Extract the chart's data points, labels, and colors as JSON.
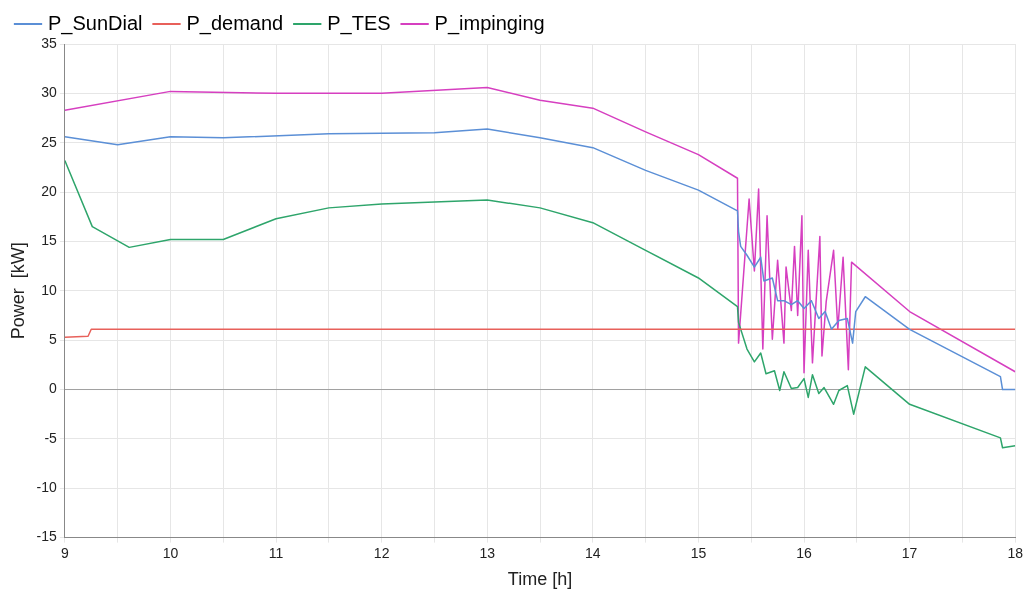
{
  "chart_data": {
    "type": "line",
    "xlabel": "Time [h]",
    "ylabel": "Power  [kW]",
    "xlim": [
      9,
      18
    ],
    "xticks": [
      9,
      {
        "value": 9.5,
        "label": null
      },
      10,
      {
        "value": 10.5,
        "label": null
      },
      11,
      {
        "value": 11.5,
        "label": null
      },
      12,
      {
        "value": 12.5,
        "label": null
      },
      13,
      {
        "value": 13.5,
        "label": null
      },
      14,
      {
        "value": 14.5,
        "label": null
      },
      15,
      {
        "value": 15.5,
        "label": null
      },
      16,
      {
        "value": 16.5,
        "label": null
      },
      17,
      {
        "value": 17.5,
        "label": null
      },
      18
    ],
    "ylim": [
      -15,
      35
    ],
    "yticks": [
      -15,
      -10,
      -5,
      0,
      5,
      10,
      15,
      20,
      25,
      30,
      35
    ],
    "grid": true,
    "legend": "top left",
    "marker": "none",
    "line_style": "solid",
    "ref_lines": [
      {
        "axis": "y",
        "value": 0,
        "color": "#a0a0a0"
      }
    ],
    "series": [
      {
        "name": "P_SunDial",
        "color": "#5b8fd6",
        "x": [
          9,
          9.5,
          10,
          10.5,
          11.5,
          12.5,
          13,
          13.5,
          14,
          14.5,
          15,
          15.37,
          15.38,
          15.4,
          15.46,
          15.53,
          15.59,
          15.62,
          15.7,
          15.75,
          15.81,
          15.88,
          15.94,
          16.0,
          16.07,
          16.14,
          16.2,
          16.26,
          16.33,
          16.41,
          16.46,
          16.49,
          16.58,
          17.0,
          17.86,
          17.88,
          18
        ],
        "values": [
          25.6,
          24.8,
          25.6,
          25.5,
          25.9,
          26.0,
          26.4,
          25.5,
          24.5,
          22.2,
          20.2,
          18.1,
          16.0,
          14.5,
          13.6,
          12.4,
          13.4,
          11.0,
          11.3,
          9.0,
          9.0,
          8.6,
          9.0,
          8.2,
          9.0,
          7.2,
          7.9,
          6.1,
          7.0,
          7.2,
          4.7,
          7.9,
          9.4,
          6.1,
          1.3,
          0,
          0
        ]
      },
      {
        "name": "P_demand",
        "color": "#e8605a",
        "x": [
          9,
          9.22,
          9.25,
          18
        ],
        "values": [
          5.3,
          5.4,
          6.1,
          6.1
        ]
      },
      {
        "name": "P_TES",
        "color": "#2ea56b",
        "x": [
          9,
          9.26,
          9.61,
          10,
          10.5,
          11,
          11.5,
          12,
          13,
          13.5,
          14,
          14.5,
          15,
          15.37,
          15.38,
          15.46,
          15.53,
          15.59,
          15.64,
          15.72,
          15.77,
          15.81,
          15.88,
          15.94,
          16.0,
          16.04,
          16.08,
          16.14,
          16.19,
          16.28,
          16.33,
          16.41,
          16.47,
          16.58,
          17.0,
          17.86,
          17.88,
          18
        ],
        "values": [
          23.2,
          16.5,
          14.4,
          15.2,
          15.2,
          17.3,
          18.4,
          18.8,
          19.2,
          18.4,
          16.9,
          14.1,
          11.3,
          8.4,
          6.8,
          4.1,
          2.8,
          3.7,
          1.6,
          1.9,
          -0.1,
          1.8,
          0.1,
          0.2,
          1.1,
          -0.8,
          1.5,
          -0.4,
          0.2,
          -1.5,
          -0.1,
          0.4,
          -2.5,
          2.3,
          -1.5,
          -4.9,
          -5.9,
          -5.7
        ]
      },
      {
        "name": "P_impinging",
        "color": "#d63fc0",
        "x": [
          9,
          10,
          11,
          12,
          13,
          13.5,
          14,
          14.5,
          15,
          15.37,
          15.38,
          15.48,
          15.53,
          15.57,
          15.61,
          15.65,
          15.7,
          15.75,
          15.81,
          15.83,
          15.88,
          15.91,
          15.94,
          15.98,
          16.0,
          16.04,
          16.08,
          16.15,
          16.17,
          16.21,
          16.28,
          16.32,
          16.37,
          16.42,
          16.45,
          17.0,
          18
        ],
        "values": [
          28.3,
          30.2,
          30.0,
          30.0,
          30.6,
          29.3,
          28.5,
          26.1,
          23.8,
          21.4,
          4.7,
          19.3,
          12.0,
          20.3,
          4.1,
          17.6,
          5.1,
          13.1,
          4.7,
          12.4,
          8.0,
          14.5,
          7.5,
          17.6,
          1.7,
          14.1,
          2.7,
          15.5,
          3.4,
          8.9,
          14.1,
          6.1,
          13.4,
          2.0,
          12.9,
          7.9,
          1.8
        ]
      }
    ]
  }
}
